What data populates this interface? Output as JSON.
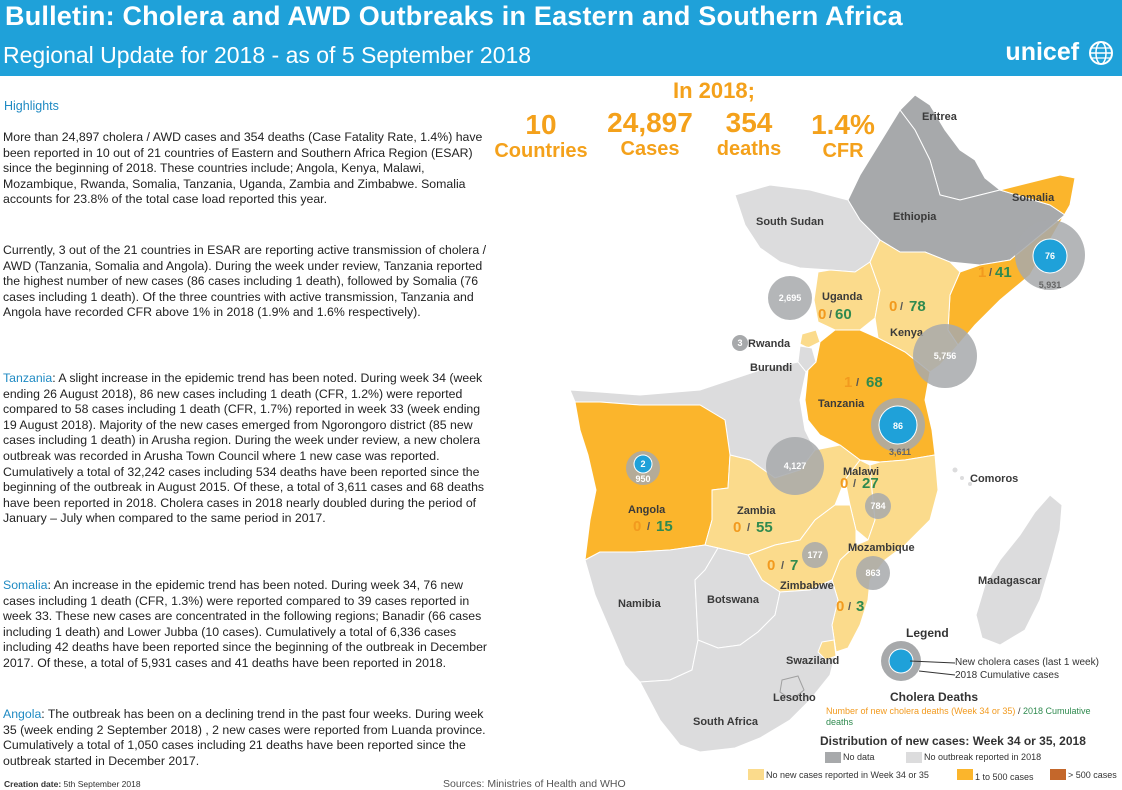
{
  "header": {
    "title": "Bulletin: Cholera and AWD Outbreaks in Eastern and Southern Africa",
    "subtitle": "Regional Update for 2018 - as of 5 September 2018",
    "logo_text": "unicef"
  },
  "highlights": {
    "heading": "Highlights",
    "p1": "More than 24,897 cholera / AWD cases and 354 deaths (Case Fatality Rate, 1.4%) have been reported in 10 out of 21 countries of Eastern and Southern Africa Region (ESAR) since the beginning of 2018. These countries include; Angola, Kenya, Malawi, Mozambique, Rwanda, Somalia, Tanzania, Uganda, Zambia and Zimbabwe. Somalia accounts for 23.8% of the total case load reported this year.",
    "p2": "Currently, 3 out of the 21 countries in ESAR are reporting active transmission of cholera / AWD (Tanzania, Somalia and Angola). During the week under review, Tanzania reported the highest number of new cases (86 cases including 1 death), followed by Somalia (76 cases including 1 death). Of the three countries with active transmission, Tanzania and Angola  have recorded CFR above 1% in 2018 (1.9% and 1.6% respectively).",
    "tanzania_head": "Tanzania",
    "tanzania_body": ": A slight increase in the epidemic trend has been noted. During week 34 (week ending 26 August 2018), 86 new cases including 1 death (CFR, 1.2%) were reported compared to 58 cases including 1 death (CFR, 1.7%) reported in week 33 (week ending 19 August 2018). Majority of the new cases emerged from Ngorongoro district (85 new cases including 1 death) in Arusha region. During the week under review, a new cholera outbreak was recorded in Arusha Town Council where 1 new case was reported. Cumulatively a total of 32,242 cases including 534 deaths have been reported since the beginning of the outbreak in August 2015. Of these, a total of 3,611 cases and 68 deaths have been reported in 2018. Cholera cases in 2018 nearly doubled during the period of January – July when compared to the same period in 2017.",
    "somalia_head": "Somalia",
    "somalia_body": ": An increase in the epidemic trend has been noted. During week 34, 76 new cases including 1 death (CFR, 1.3%) were reported compared to 39 cases reported in week 33. These new cases are concentrated in the following regions; Banadir (66 cases including 1 death) and Lower Jubba (10 cases). Cumulatively a total of 6,336 cases including 42 deaths have been reported since the beginning of the outbreak in December 2017. Of these, a total of 5,931 cases and 41 deaths have been reported in 2018.",
    "angola_head": "Angola",
    "angola_body": ": The outbreak has been on a declining trend in the past four weeks. During week 35 (week ending 2 September 2018) , 2 new cases were reported from Luanda province. Cumulatively a total of 1,050 cases including 21 deaths have been reported since the outbreak started in December 2017."
  },
  "footer": {
    "creation_label": "Creation date:",
    "creation_value": "5th September 2018",
    "sources": "Sources: Ministries of Health and WHO"
  },
  "summary": {
    "heading": "In 2018;",
    "stats": [
      {
        "value": "10",
        "label": "Countries"
      },
      {
        "value": "24,897",
        "label": "Cases"
      },
      {
        "value": "354",
        "label": "deaths"
      },
      {
        "value": "1.4%",
        "label": "CFR"
      }
    ]
  },
  "map": {
    "countries": {
      "eritrea": "Eritrea",
      "ethiopia": "Ethiopia",
      "somalia": "Somalia",
      "south_sudan": "South Sudan",
      "uganda": "Uganda",
      "kenya": "Kenya",
      "rwanda": "Rwanda",
      "burundi": "Burundi",
      "tanzania": "Tanzania",
      "comoros": "Comoros",
      "angola": "Angola",
      "zambia": "Zambia",
      "malawi": "Malawi",
      "mozambique": "Mozambique",
      "madagascar": "Madagascar",
      "zimbabwe": "Zimbabwe",
      "namibia": "Namibia",
      "botswana": "Botswana",
      "swaziland": "Swaziland",
      "lesotho": "Lesotho",
      "south_africa": "South Africa"
    },
    "figures": {
      "somalia": {
        "deaths": "1",
        "cumulative": "41"
      },
      "uganda": {
        "deaths": "0",
        "cumulative": "60"
      },
      "kenya": {
        "deaths": "0",
        "cumulative": "78"
      },
      "tanzania": {
        "deaths": "1",
        "cumulative": "68"
      },
      "malawi": {
        "deaths": "0",
        "cumulative": "27"
      },
      "angola": {
        "deaths": "0",
        "cumulative": "15"
      },
      "zambia": {
        "deaths": "0",
        "cumulative": "55"
      },
      "zimbabwe": {
        "deaths": "0",
        "cumulative": "7"
      },
      "mozambique": {
        "deaths": "0",
        "cumulative": "3"
      }
    },
    "bubbles": {
      "somalia_new": "76",
      "somalia_cum": "5,931",
      "uganda_cum": "2,695",
      "kenya_cum": "5,756",
      "rwanda_cum": "3",
      "tanzania_new": "86",
      "tanzania_cum": "3,611",
      "zambia_cum": "4,127",
      "angola_new": "2",
      "angola_cum": "950",
      "malawi_cum": "784",
      "zimbabwe_cum": "177",
      "mozambique_cum": "863"
    },
    "slash": "/"
  },
  "legend": {
    "title": "Legend",
    "new_cases": "New cholera cases (last 1 week)",
    "cumulative": "2018 Cumulative cases",
    "deaths_title": "Cholera Deaths",
    "deaths_desc_a": "Number of new cholera deaths (Week 34 or 35)",
    "deaths_desc_sep": " / ",
    "deaths_desc_b": "2018 Cumulative deaths",
    "distribution_title": "Distribution of new cases: Week 34 or 35, 2018",
    "no_data": "No data",
    "no_outbreak": "No outbreak reported in 2018",
    "no_new": "No new cases reported in Week 34 or 35",
    "range_1_500": "1 to 500 cases",
    "range_500": "> 500 cases"
  },
  "colors": {
    "header_bg": "#1fa1d9",
    "accent_orange": "#f4a11b",
    "green": "#2f8a4f",
    "no_data": "#a7a9ab",
    "no_outbreak": "#dcdcdd",
    "no_new": "#fbdb8c",
    "range_1_500": "#fbb52c",
    "range_500": "#c4672b",
    "bubble_blue": "#1fa1d9"
  }
}
